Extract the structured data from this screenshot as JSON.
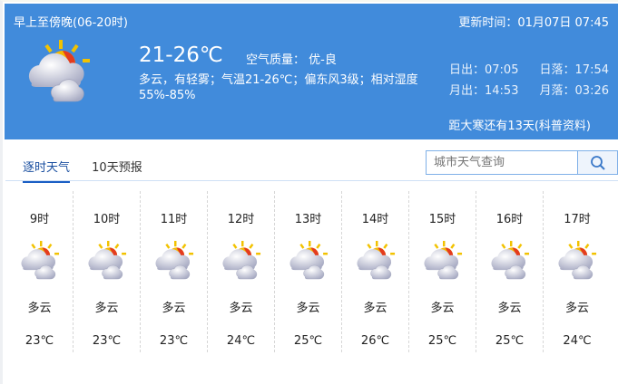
{
  "header": {
    "period": "早上至傍晚(06-20时)",
    "updated": "更新时间：01月07日 07:45",
    "temp_range": "21-26℃",
    "air_quality": "空气质量： 优-良",
    "description": "多云，有轻雾；气温21-26℃；偏东风3级；相对湿度55%-85%",
    "sunrise": "日出：07:05",
    "sunset": "日落：17:54",
    "moonrise": "月出：14:53",
    "moonset": "月落：03:26",
    "solar_term": "距大寒还有13天(科普资料)",
    "icon": "partly-cloudy-icon"
  },
  "tabs": [
    {
      "label": "逐时天气",
      "active": true
    },
    {
      "label": "10天预报",
      "active": false
    }
  ],
  "search": {
    "placeholder": "城市天气查询",
    "icon": "search-icon"
  },
  "hourly": [
    {
      "hour": "9时",
      "weather": "多云",
      "temp": "23℃"
    },
    {
      "hour": "10时",
      "weather": "多云",
      "temp": "23℃"
    },
    {
      "hour": "11时",
      "weather": "多云",
      "temp": "23℃"
    },
    {
      "hour": "12时",
      "weather": "多云",
      "temp": "24℃"
    },
    {
      "hour": "13时",
      "weather": "多云",
      "temp": "25℃"
    },
    {
      "hour": "14时",
      "weather": "多云",
      "temp": "26℃"
    },
    {
      "hour": "15时",
      "weather": "多云",
      "temp": "25℃"
    },
    {
      "hour": "16时",
      "weather": "多云",
      "temp": "25℃"
    },
    {
      "hour": "17时",
      "weather": "多云",
      "temp": "24℃"
    }
  ],
  "colors": {
    "header_bg": "#418bdb",
    "tab_active": "#1a4fa0"
  }
}
